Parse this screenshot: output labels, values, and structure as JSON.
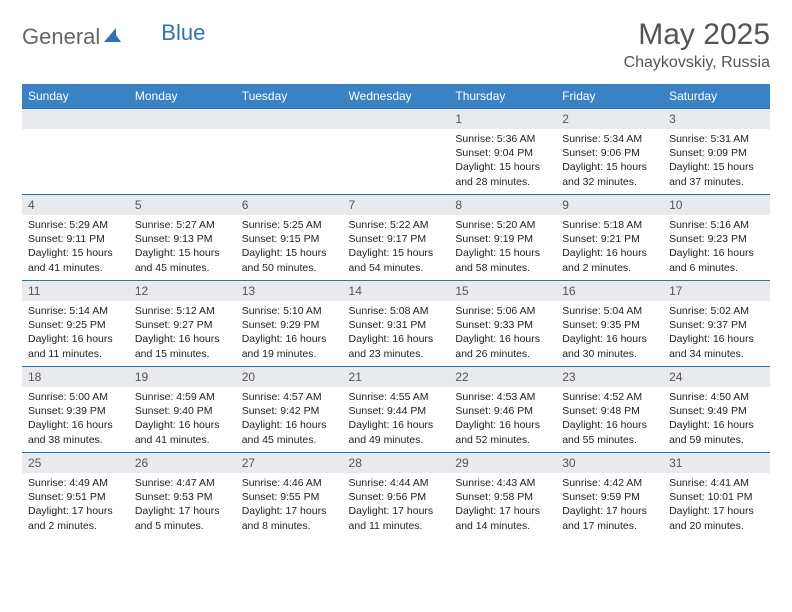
{
  "brand": {
    "part1": "General",
    "part2": "Blue"
  },
  "title": "May 2025",
  "location": "Chaykovskiy, Russia",
  "colors": {
    "header_bg": "#3a82c4",
    "header_text": "#ffffff",
    "daynum_bg": "#e8eaed",
    "border": "#2d72b8",
    "brand_gray": "#666666",
    "brand_blue": "#2d72b8"
  },
  "weekdays": [
    "Sunday",
    "Monday",
    "Tuesday",
    "Wednesday",
    "Thursday",
    "Friday",
    "Saturday"
  ],
  "weeks": [
    [
      {
        "n": "",
        "sr": "",
        "ss": "",
        "dl": ""
      },
      {
        "n": "",
        "sr": "",
        "ss": "",
        "dl": ""
      },
      {
        "n": "",
        "sr": "",
        "ss": "",
        "dl": ""
      },
      {
        "n": "",
        "sr": "",
        "ss": "",
        "dl": ""
      },
      {
        "n": "1",
        "sr": "5:36 AM",
        "ss": "9:04 PM",
        "dl": "15 hours and 28 minutes."
      },
      {
        "n": "2",
        "sr": "5:34 AM",
        "ss": "9:06 PM",
        "dl": "15 hours and 32 minutes."
      },
      {
        "n": "3",
        "sr": "5:31 AM",
        "ss": "9:09 PM",
        "dl": "15 hours and 37 minutes."
      }
    ],
    [
      {
        "n": "4",
        "sr": "5:29 AM",
        "ss": "9:11 PM",
        "dl": "15 hours and 41 minutes."
      },
      {
        "n": "5",
        "sr": "5:27 AM",
        "ss": "9:13 PM",
        "dl": "15 hours and 45 minutes."
      },
      {
        "n": "6",
        "sr": "5:25 AM",
        "ss": "9:15 PM",
        "dl": "15 hours and 50 minutes."
      },
      {
        "n": "7",
        "sr": "5:22 AM",
        "ss": "9:17 PM",
        "dl": "15 hours and 54 minutes."
      },
      {
        "n": "8",
        "sr": "5:20 AM",
        "ss": "9:19 PM",
        "dl": "15 hours and 58 minutes."
      },
      {
        "n": "9",
        "sr": "5:18 AM",
        "ss": "9:21 PM",
        "dl": "16 hours and 2 minutes."
      },
      {
        "n": "10",
        "sr": "5:16 AM",
        "ss": "9:23 PM",
        "dl": "16 hours and 6 minutes."
      }
    ],
    [
      {
        "n": "11",
        "sr": "5:14 AM",
        "ss": "9:25 PM",
        "dl": "16 hours and 11 minutes."
      },
      {
        "n": "12",
        "sr": "5:12 AM",
        "ss": "9:27 PM",
        "dl": "16 hours and 15 minutes."
      },
      {
        "n": "13",
        "sr": "5:10 AM",
        "ss": "9:29 PM",
        "dl": "16 hours and 19 minutes."
      },
      {
        "n": "14",
        "sr": "5:08 AM",
        "ss": "9:31 PM",
        "dl": "16 hours and 23 minutes."
      },
      {
        "n": "15",
        "sr": "5:06 AM",
        "ss": "9:33 PM",
        "dl": "16 hours and 26 minutes."
      },
      {
        "n": "16",
        "sr": "5:04 AM",
        "ss": "9:35 PM",
        "dl": "16 hours and 30 minutes."
      },
      {
        "n": "17",
        "sr": "5:02 AM",
        "ss": "9:37 PM",
        "dl": "16 hours and 34 minutes."
      }
    ],
    [
      {
        "n": "18",
        "sr": "5:00 AM",
        "ss": "9:39 PM",
        "dl": "16 hours and 38 minutes."
      },
      {
        "n": "19",
        "sr": "4:59 AM",
        "ss": "9:40 PM",
        "dl": "16 hours and 41 minutes."
      },
      {
        "n": "20",
        "sr": "4:57 AM",
        "ss": "9:42 PM",
        "dl": "16 hours and 45 minutes."
      },
      {
        "n": "21",
        "sr": "4:55 AM",
        "ss": "9:44 PM",
        "dl": "16 hours and 49 minutes."
      },
      {
        "n": "22",
        "sr": "4:53 AM",
        "ss": "9:46 PM",
        "dl": "16 hours and 52 minutes."
      },
      {
        "n": "23",
        "sr": "4:52 AM",
        "ss": "9:48 PM",
        "dl": "16 hours and 55 minutes."
      },
      {
        "n": "24",
        "sr": "4:50 AM",
        "ss": "9:49 PM",
        "dl": "16 hours and 59 minutes."
      }
    ],
    [
      {
        "n": "25",
        "sr": "4:49 AM",
        "ss": "9:51 PM",
        "dl": "17 hours and 2 minutes."
      },
      {
        "n": "26",
        "sr": "4:47 AM",
        "ss": "9:53 PM",
        "dl": "17 hours and 5 minutes."
      },
      {
        "n": "27",
        "sr": "4:46 AM",
        "ss": "9:55 PM",
        "dl": "17 hours and 8 minutes."
      },
      {
        "n": "28",
        "sr": "4:44 AM",
        "ss": "9:56 PM",
        "dl": "17 hours and 11 minutes."
      },
      {
        "n": "29",
        "sr": "4:43 AM",
        "ss": "9:58 PM",
        "dl": "17 hours and 14 minutes."
      },
      {
        "n": "30",
        "sr": "4:42 AM",
        "ss": "9:59 PM",
        "dl": "17 hours and 17 minutes."
      },
      {
        "n": "31",
        "sr": "4:41 AM",
        "ss": "10:01 PM",
        "dl": "17 hours and 20 minutes."
      }
    ]
  ],
  "labels": {
    "sunrise": "Sunrise: ",
    "sunset": "Sunset: ",
    "daylight": "Daylight: "
  }
}
